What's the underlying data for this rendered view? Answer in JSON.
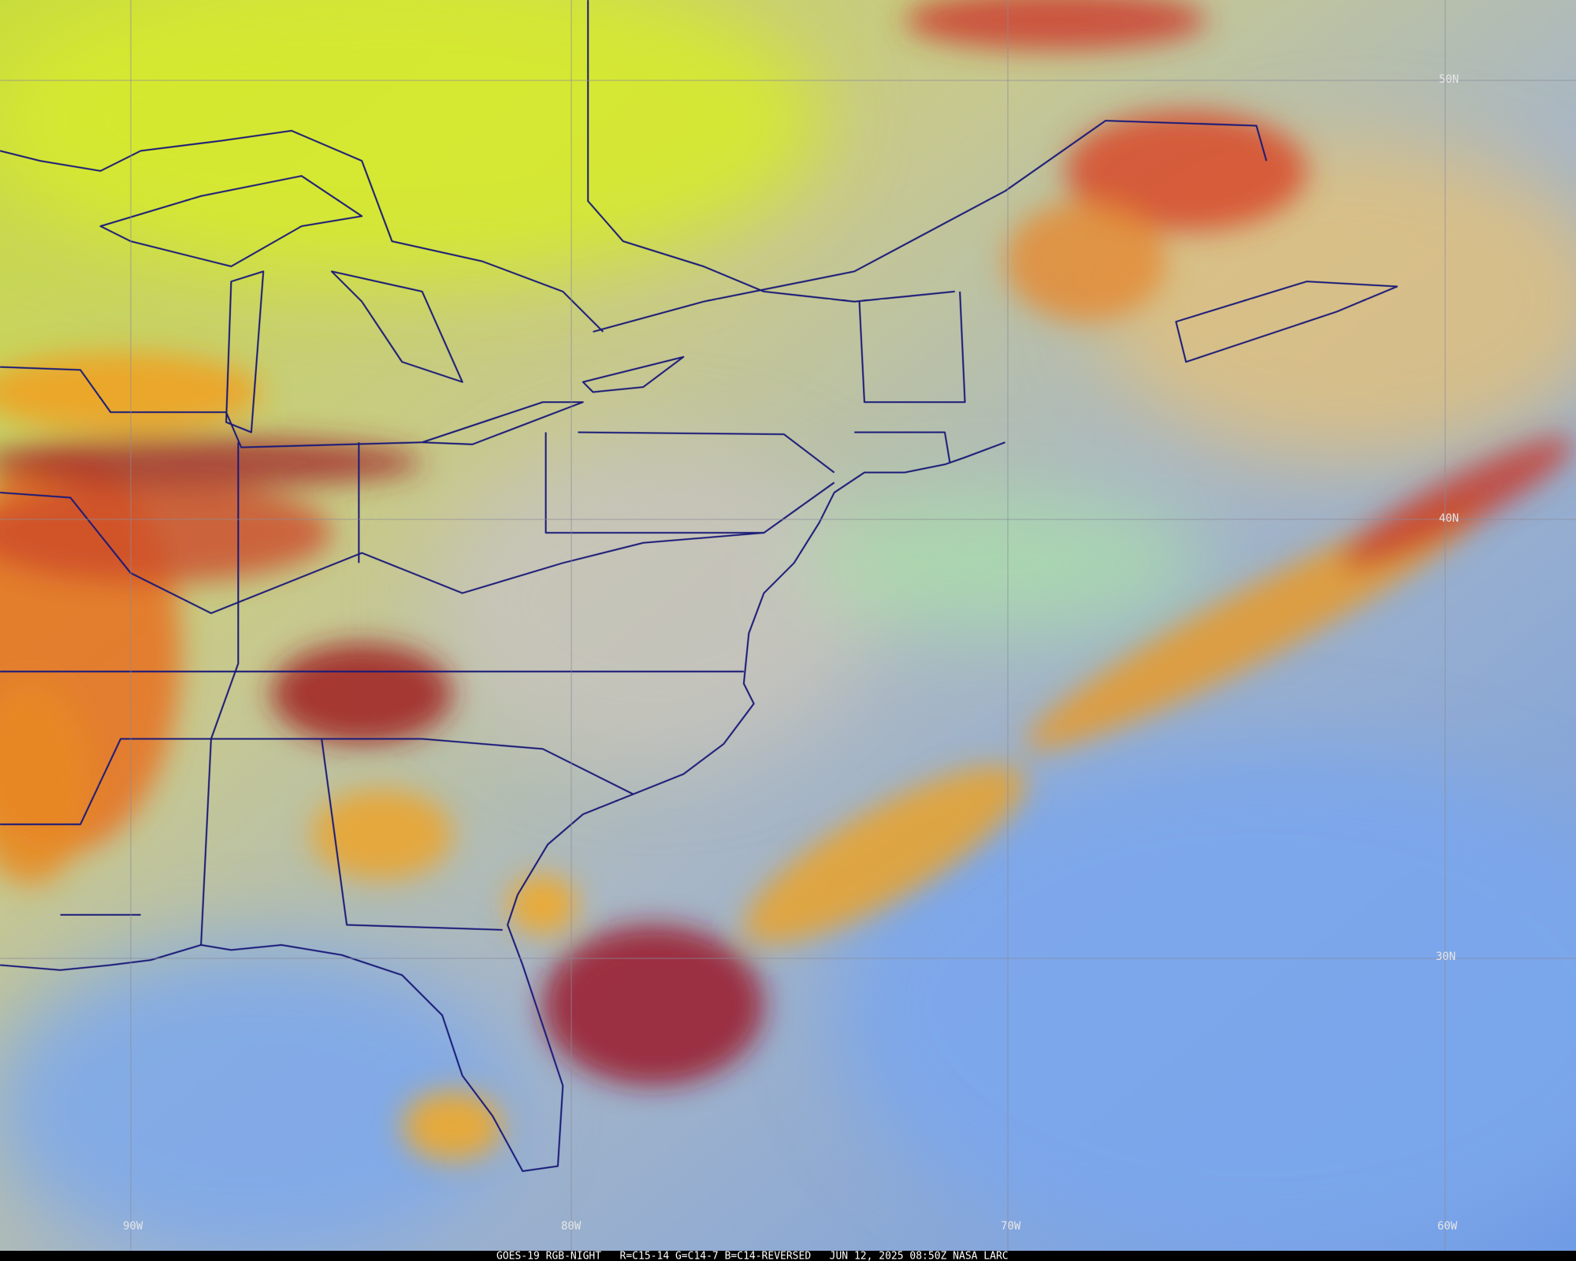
{
  "grid_labels": {
    "latitudes": [
      "50N",
      "40N",
      "30N"
    ],
    "longitudes": [
      "90W",
      "80W",
      "70W",
      "60W"
    ]
  },
  "footer": "GOES-19 RGB-NIGHT   R=C15-14 G=C14-7 B=C14-REVERSED   JUN 12, 2025 08:50Z NASA LARC"
}
